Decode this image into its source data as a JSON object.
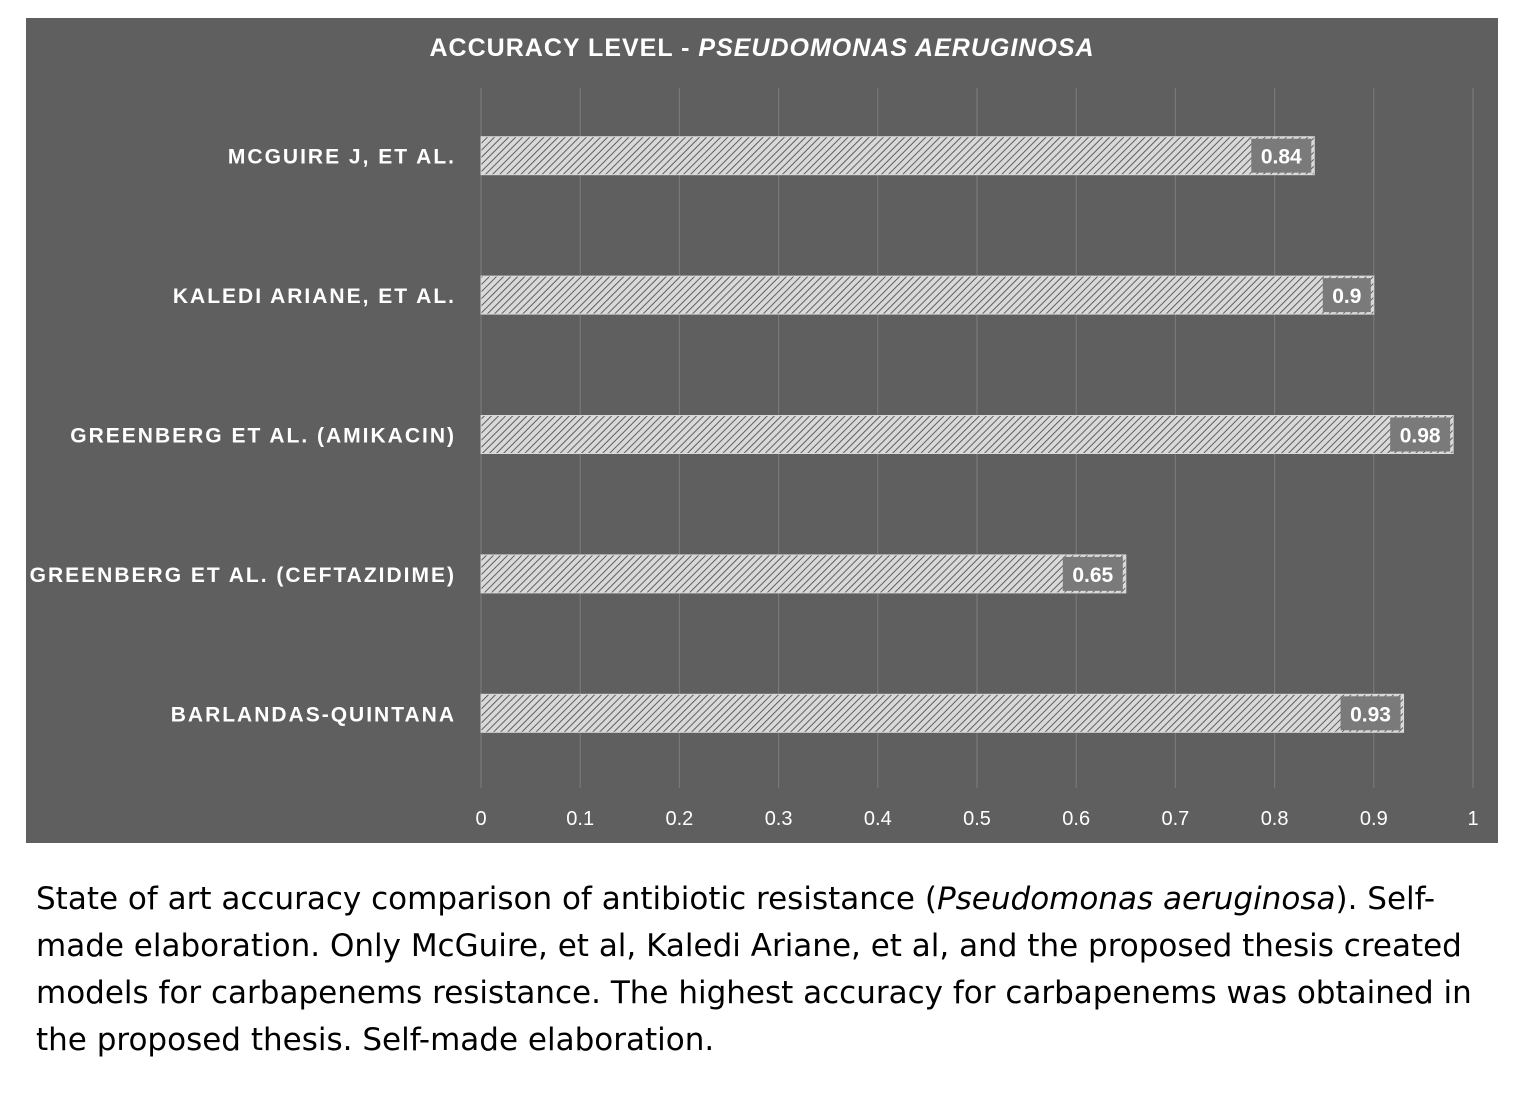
{
  "chart_data": {
    "type": "bar",
    "orientation": "horizontal",
    "title_main": "ACCURACY LEVEL - ",
    "title_italic": "PSEUDOMONAS AERUGINOSA",
    "categories": [
      "MCGUIRE J, ET AL.",
      "KALEDI ARIANE, ET AL.",
      "GREENBERG ET AL. (AMIKACIN)",
      "GREENBERG ET AL. (CEFTAZIDIME)",
      "BARLANDAS-QUINTANA"
    ],
    "values": [
      0.84,
      0.9,
      0.98,
      0.65,
      0.93
    ],
    "data_labels": [
      "0.84",
      "0.9",
      "0.98",
      "0.65",
      "0.93"
    ],
    "xlim": [
      0,
      1
    ],
    "x_ticks": [
      "0",
      "0.1",
      "0.2",
      "0.3",
      "0.4",
      "0.5",
      "0.6",
      "0.7",
      "0.8",
      "0.9",
      "1"
    ],
    "grid": "vertical",
    "colors": {
      "background": "#5f5f5f",
      "bar_fill": "#d9d9d9",
      "bar_hatch": "#5f5f5f",
      "label_box": "#7a7a7a",
      "gridline": "#7c7c7c",
      "text": "#ffffff"
    }
  },
  "caption": {
    "part1": "State of art accuracy comparison of antibiotic resistance  (",
    "italic": "Pseudomonas aeruginosa",
    "part2": "). Self-made elaboration. Only McGuire, et al, Kaledi Ariane, et al, and the proposed thesis created models for carbapenems resistance. The highest accuracy for carbapenems was obtained in the proposed thesis. Self-made elaboration."
  }
}
